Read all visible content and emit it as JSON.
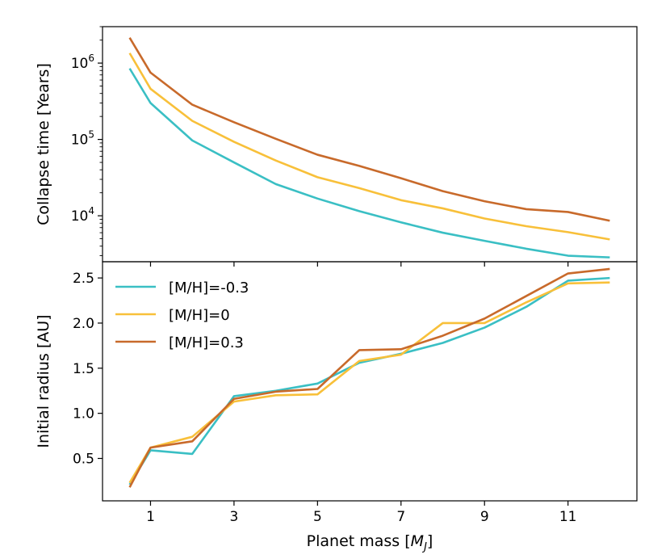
{
  "chart_data": [
    {
      "type": "line",
      "panel": "top",
      "ylabel": "Collapse time [Years]",
      "yscale": "log",
      "ylim": [
        2500,
        3000000
      ],
      "xlim": [
        -0.15,
        12.65
      ],
      "yticks": [
        {
          "value": 1000000,
          "mantissa": "10",
          "exp": "6"
        },
        {
          "value": 100000,
          "mantissa": "10",
          "exp": "5"
        },
        {
          "value": 10000,
          "mantissa": "10",
          "exp": "4"
        }
      ],
      "x": [
        0.5,
        1,
        2,
        3,
        4,
        5,
        6,
        7,
        8,
        9,
        10,
        11,
        12
      ],
      "series": [
        {
          "name": "[M/H]=-0.3",
          "color": "#3ABFC4",
          "values": [
            850000,
            300000,
            97000,
            50000,
            26000,
            16800,
            11500,
            8200,
            6000,
            4700,
            3700,
            3000,
            2850
          ]
        },
        {
          "name": "[M/H]=0",
          "color": "#F8C03A",
          "values": [
            1350000,
            460000,
            175000,
            93000,
            53000,
            32000,
            23000,
            16000,
            12500,
            9200,
            7300,
            6100,
            4900
          ]
        },
        {
          "name": "[M/H]=0.3",
          "color": "#C86A2B",
          "values": [
            2150000,
            750000,
            285000,
            168000,
            102000,
            63000,
            45000,
            31000,
            21000,
            15500,
            12200,
            11200,
            8600
          ]
        }
      ]
    },
    {
      "type": "line",
      "panel": "bottom",
      "xlabel_prefix": "Planet mass [",
      "xlabel_symbol": "M",
      "xlabel_sub": "J",
      "xlabel_suffix": "]",
      "ylabel": "Initial radius [AU]",
      "ylim": [
        0.03,
        2.68
      ],
      "xlim": [
        -0.15,
        12.65
      ],
      "xticks": [
        1,
        3,
        5,
        7,
        9,
        11
      ],
      "yticks": [
        0.5,
        1.0,
        1.5,
        2.0,
        2.5
      ],
      "legend_position": "upper-left",
      "x": [
        0.5,
        1,
        2,
        3,
        4,
        5,
        6,
        7,
        8,
        9,
        10,
        11,
        12
      ],
      "series": [
        {
          "name": "[M/H]=-0.3",
          "color": "#3ABFC4",
          "values": [
            0.21,
            0.59,
            0.55,
            1.19,
            1.25,
            1.33,
            1.56,
            1.66,
            1.78,
            1.95,
            2.18,
            2.47,
            2.5
          ]
        },
        {
          "name": "[M/H]=0",
          "color": "#F8C03A",
          "values": [
            0.23,
            0.62,
            0.74,
            1.13,
            1.2,
            1.21,
            1.58,
            1.65,
            2.0,
            2.0,
            2.23,
            2.44,
            2.45
          ]
        },
        {
          "name": "[M/H]=0.3",
          "color": "#C86A2B",
          "values": [
            0.18,
            0.62,
            0.69,
            1.16,
            1.24,
            1.27,
            1.7,
            1.71,
            1.86,
            2.05,
            2.3,
            2.55,
            2.6
          ]
        }
      ]
    }
  ]
}
